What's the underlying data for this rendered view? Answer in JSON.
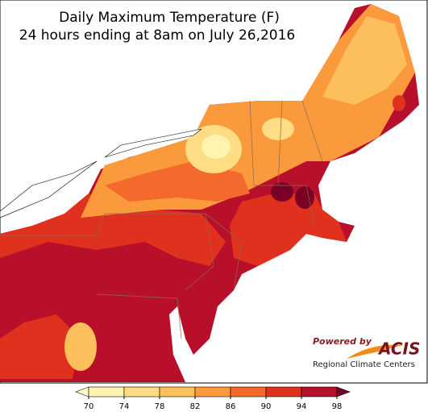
{
  "title": [
    "Daily Maximum Temperature (F)",
    "24 hours ending at 8am on July 26,2016"
  ],
  "legend": {
    "ticks": [
      70,
      74,
      78,
      82,
      86,
      90,
      94,
      98
    ],
    "colors": [
      "#ffffcc",
      "#fff3b0",
      "#fedd84",
      "#fdbf5c",
      "#fb9a3c",
      "#f46a2d",
      "#e0301e",
      "#b8102a",
      "#7a0026"
    ]
  },
  "logo": {
    "powered": "Powered by",
    "name": "ACIS",
    "subtitle": "Regional Climate Centers"
  }
}
